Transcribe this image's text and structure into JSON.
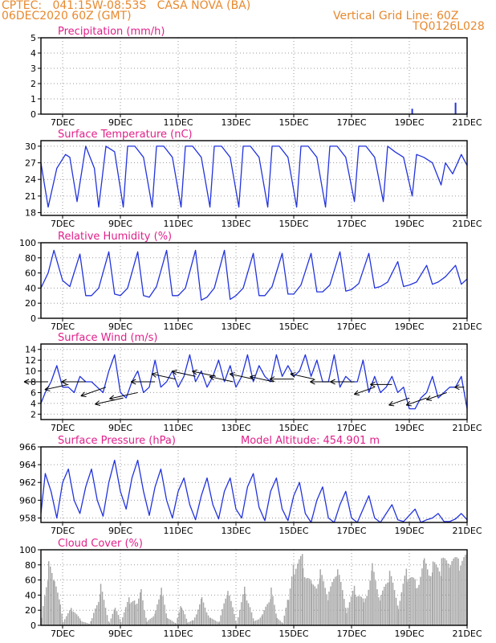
{
  "header": {
    "line1": "CPTEC:   041:15W-08:53S   CASA NOVA (BA)",
    "line2": "06DEC2020 60Z (GMT)",
    "grid_note": "Vertical Grid Line: 60Z",
    "code": "TQ0126L028"
  },
  "colors": {
    "header": "#e8892e",
    "title": "#e0208a",
    "series": "#2233dd",
    "cloud": "#a8a8a8",
    "grid": "#9a9a9a",
    "wind_arrow": "#000000"
  },
  "x_axis": {
    "start_day": 6.25,
    "end_day": 21,
    "tick_labels": [
      "7DEC",
      "9DEC",
      "11DEC",
      "13DEC",
      "15DEC",
      "17DEC",
      "19DEC",
      "21DEC"
    ],
    "tick_days": [
      7,
      9,
      11,
      13,
      15,
      17,
      19,
      21
    ]
  },
  "chart_data": [
    {
      "type": "bar",
      "title": "Precipitation (mm/h)",
      "ylim": [
        0,
        5
      ],
      "yticks": [
        0,
        1,
        2,
        3,
        4,
        5
      ],
      "grid": true,
      "bars": [
        {
          "day": 19.1,
          "value": 0.35
        },
        {
          "day": 20.6,
          "value": 0.75
        },
        {
          "day": 21.0,
          "value": 0.15
        }
      ]
    },
    {
      "type": "line",
      "title": "Surface Temperature (nC)",
      "ylim": [
        17.5,
        31
      ],
      "yticks": [
        18,
        21,
        24,
        27,
        30
      ],
      "grid": true,
      "x": [
        6.25,
        6.5,
        6.8,
        7.1,
        7.25,
        7.5,
        7.8,
        8.1,
        8.25,
        8.5,
        8.8,
        9.1,
        9.25,
        9.5,
        9.8,
        10.1,
        10.25,
        10.5,
        10.8,
        11.1,
        11.25,
        11.5,
        11.8,
        12.1,
        12.25,
        12.5,
        12.8,
        13.1,
        13.25,
        13.5,
        13.8,
        14.1,
        14.25,
        14.5,
        14.8,
        15.1,
        15.25,
        15.5,
        15.8,
        16.1,
        16.25,
        16.5,
        16.8,
        17.1,
        17.25,
        17.5,
        17.8,
        18.1,
        18.25,
        18.5,
        18.8,
        19.1,
        19.25,
        19.5,
        19.8,
        20.1,
        20.25,
        20.5,
        20.8,
        21.0
      ],
      "values": [
        27,
        19,
        26,
        28.5,
        28,
        20,
        30,
        26,
        19,
        30,
        29,
        19,
        30,
        30,
        28,
        19,
        30,
        30,
        28,
        19,
        30,
        30,
        28,
        19,
        30,
        30,
        28,
        19,
        30,
        30,
        28,
        19,
        30,
        30,
        28,
        19,
        30,
        30,
        28,
        19,
        30,
        30,
        28,
        20,
        30,
        30,
        28,
        20,
        30,
        29,
        28,
        21,
        28.5,
        28,
        27,
        23,
        27,
        25,
        28.5,
        26.5
      ]
    },
    {
      "type": "line",
      "title": "Relative Humidity (%)",
      "ylim": [
        0,
        100
      ],
      "yticks": [
        0,
        20,
        40,
        60,
        80,
        100
      ],
      "grid": true,
      "x": [
        6.25,
        6.5,
        6.7,
        7.0,
        7.25,
        7.6,
        7.8,
        8.0,
        8.25,
        8.6,
        8.8,
        9.0,
        9.25,
        9.6,
        9.8,
        10.0,
        10.25,
        10.6,
        10.8,
        11.0,
        11.25,
        11.6,
        11.8,
        12.0,
        12.25,
        12.6,
        12.8,
        13.0,
        13.25,
        13.6,
        13.8,
        14.0,
        14.25,
        14.6,
        14.8,
        15.0,
        15.25,
        15.6,
        15.8,
        16.0,
        16.25,
        16.6,
        16.8,
        17.0,
        17.25,
        17.6,
        17.8,
        18.0,
        18.25,
        18.6,
        18.8,
        19.0,
        19.25,
        19.6,
        19.8,
        20.0,
        20.25,
        20.6,
        20.8,
        21.0
      ],
      "values": [
        40,
        60,
        90,
        50,
        42,
        85,
        30,
        30,
        40,
        88,
        32,
        30,
        40,
        88,
        30,
        28,
        42,
        90,
        30,
        30,
        40,
        90,
        24,
        28,
        40,
        90,
        25,
        30,
        40,
        86,
        30,
        30,
        42,
        86,
        32,
        32,
        44,
        86,
        35,
        35,
        44,
        88,
        36,
        38,
        46,
        86,
        40,
        42,
        48,
        75,
        42,
        44,
        48,
        70,
        45,
        48,
        55,
        70,
        45,
        52
      ]
    },
    {
      "type": "line",
      "title": "Surface Wind (m/s)",
      "ylim": [
        1,
        15
      ],
      "yticks": [
        2,
        4,
        6,
        8,
        10,
        12,
        14
      ],
      "grid": true,
      "x": [
        6.25,
        6.4,
        6.6,
        6.8,
        7.0,
        7.2,
        7.4,
        7.6,
        7.8,
        8.0,
        8.2,
        8.4,
        8.6,
        8.8,
        9.0,
        9.2,
        9.4,
        9.6,
        9.8,
        10.0,
        10.2,
        10.4,
        10.6,
        10.8,
        11.0,
        11.2,
        11.4,
        11.6,
        11.8,
        12.0,
        12.2,
        12.4,
        12.6,
        12.8,
        13.0,
        13.2,
        13.4,
        13.6,
        13.8,
        14.0,
        14.2,
        14.4,
        14.6,
        14.8,
        15.0,
        15.2,
        15.4,
        15.6,
        15.8,
        16.0,
        16.2,
        16.4,
        16.6,
        16.8,
        17.0,
        17.2,
        17.4,
        17.6,
        17.8,
        18.0,
        18.2,
        18.4,
        18.6,
        18.8,
        19.0,
        19.2,
        19.4,
        19.6,
        19.8,
        20.0,
        20.2,
        20.4,
        20.6,
        20.8,
        21.0
      ],
      "values": [
        4,
        6,
        8,
        11,
        7,
        7,
        6,
        9,
        8,
        8,
        7,
        6,
        10,
        13,
        6,
        5,
        8,
        10,
        6,
        7,
        12,
        7,
        8,
        10,
        7,
        9,
        13,
        8,
        10,
        7,
        9,
        12,
        8,
        11,
        7,
        9,
        13,
        8,
        11,
        9,
        8,
        13,
        9,
        11,
        9,
        10,
        13,
        9,
        12,
        8,
        8,
        13,
        7,
        9,
        8,
        8,
        12,
        6,
        9,
        6,
        7,
        9,
        6,
        7,
        3,
        3,
        5,
        6,
        9,
        5,
        6,
        7,
        7,
        9,
        3
      ]
    },
    {
      "type": "line",
      "title": "Surface Pressure (hPa)",
      "subtitle": "Model Altitude: 454.901 m",
      "ylim": [
        957.5,
        966
      ],
      "yticks": [
        958,
        960,
        962,
        964,
        966
      ],
      "grid": true,
      "x": [
        6.25,
        6.4,
        6.6,
        6.8,
        7.0,
        7.2,
        7.4,
        7.6,
        7.8,
        8.0,
        8.2,
        8.4,
        8.6,
        8.8,
        9.0,
        9.2,
        9.4,
        9.6,
        9.8,
        10.0,
        10.2,
        10.4,
        10.6,
        10.8,
        11.0,
        11.2,
        11.4,
        11.6,
        11.8,
        12.0,
        12.2,
        12.4,
        12.6,
        12.8,
        13.0,
        13.2,
        13.4,
        13.6,
        13.8,
        14.0,
        14.2,
        14.4,
        14.6,
        14.8,
        15.0,
        15.2,
        15.4,
        15.6,
        15.8,
        16.0,
        16.2,
        16.4,
        16.6,
        16.8,
        17.0,
        17.2,
        17.4,
        17.6,
        17.8,
        18.0,
        18.2,
        18.4,
        18.6,
        18.8,
        19.0,
        19.2,
        19.4,
        19.6,
        19.8,
        20.0,
        20.2,
        20.4,
        20.6,
        20.8,
        21.0
      ],
      "values": [
        958.5,
        963,
        961,
        958,
        962,
        963.5,
        960,
        958.5,
        961.5,
        963.5,
        960,
        958.2,
        962,
        964.5,
        961,
        959,
        962.5,
        964.5,
        961,
        958.3,
        961.5,
        963.5,
        960,
        958,
        961,
        962.5,
        959.5,
        957.8,
        960.5,
        962.5,
        959.5,
        957.9,
        961,
        962.5,
        959,
        958,
        961.5,
        963,
        959.2,
        957.7,
        961,
        962.5,
        959,
        957.7,
        960.5,
        962,
        958.5,
        957.5,
        960,
        961.5,
        958,
        957.5,
        959.5,
        961,
        958,
        957.5,
        959,
        960.5,
        958,
        957.5,
        958.5,
        959.5,
        957.8,
        957.6,
        958.3,
        959,
        957.5,
        957.8,
        958,
        958.5,
        957.6,
        957.6,
        957.9,
        958.5,
        957.8
      ]
    },
    {
      "type": "area",
      "title": "Cloud Cover (%)",
      "ylim": [
        0,
        100
      ],
      "yticks": [
        0,
        20,
        40,
        60,
        80,
        100
      ],
      "grid": true,
      "x": [
        6.25,
        6.5,
        6.7,
        6.9,
        7.0,
        7.3,
        7.6,
        7.9,
        8.0,
        8.3,
        8.6,
        8.8,
        9.0,
        9.3,
        9.5,
        9.7,
        9.9,
        10.2,
        10.4,
        10.6,
        10.9,
        11.1,
        11.3,
        11.5,
        11.8,
        12.1,
        12.4,
        12.7,
        13.0,
        13.3,
        13.6,
        13.9,
        14.2,
        14.4,
        14.6,
        14.8,
        15.0,
        15.3,
        15.6,
        15.9,
        16.2,
        16.5,
        16.8,
        17.1,
        17.4,
        17.7,
        18.0,
        18.3,
        18.6,
        18.9,
        19.2,
        19.5,
        19.8,
        20.1,
        20.4,
        20.7,
        21.0
      ],
      "values": [
        10,
        85,
        60,
        30,
        5,
        25,
        8,
        2,
        10,
        55,
        3,
        25,
        5,
        40,
        35,
        55,
        5,
        20,
        50,
        10,
        3,
        30,
        5,
        8,
        40,
        10,
        5,
        50,
        3,
        55,
        6,
        15,
        50,
        10,
        3,
        40,
        90,
        95,
        60,
        75,
        45,
        80,
        20,
        55,
        35,
        85,
        40,
        75,
        25,
        80,
        60,
        95,
        85,
        90,
        88,
        92,
        95
      ]
    }
  ],
  "wind_arrows": [
    {
      "day": 6.5,
      "dir": "w",
      "len": 1.0,
      "mps": 8
    },
    {
      "day": 7.2,
      "dir": "wsw",
      "len": 1.0,
      "mps": 7.5
    },
    {
      "day": 7.8,
      "dir": "w",
      "len": 1.0,
      "mps": 8
    },
    {
      "day": 8.5,
      "dir": "ws",
      "len": 1.1,
      "mps": 7
    },
    {
      "day": 9.1,
      "dir": "wsw",
      "len": 1.2,
      "mps": 5
    },
    {
      "day": 9.6,
      "dir": "wsw",
      "len": 1.2,
      "mps": 6
    },
    {
      "day": 10.2,
      "dir": "w",
      "len": 1.0,
      "mps": 8
    },
    {
      "day": 10.9,
      "dir": "wn",
      "len": 1.0,
      "mps": 8.5
    },
    {
      "day": 11.6,
      "dir": "wn",
      "len": 1.0,
      "mps": 9
    },
    {
      "day": 12.3,
      "dir": "wn",
      "len": 1.0,
      "mps": 9
    },
    {
      "day": 12.9,
      "dir": "wn",
      "len": 1.0,
      "mps": 8
    },
    {
      "day": 13.6,
      "dir": "wn",
      "len": 1.0,
      "mps": 8.5
    },
    {
      "day": 14.3,
      "dir": "wn",
      "len": 1.0,
      "mps": 8
    },
    {
      "day": 15.0,
      "dir": "w",
      "len": 1.0,
      "mps": 8.5
    },
    {
      "day": 15.7,
      "dir": "wn",
      "len": 1.0,
      "mps": 8.5
    },
    {
      "day": 16.4,
      "dir": "w",
      "len": 1.0,
      "mps": 8
    },
    {
      "day": 17.1,
      "dir": "w",
      "len": 1.0,
      "mps": 8
    },
    {
      "day": 17.8,
      "dir": "ws",
      "len": 0.9,
      "mps": 7
    },
    {
      "day": 18.4,
      "dir": "w",
      "len": 0.9,
      "mps": 7.5
    },
    {
      "day": 19.0,
      "dir": "ws",
      "len": 0.9,
      "mps": 5
    },
    {
      "day": 19.6,
      "dir": "ws",
      "len": 0.9,
      "mps": 5
    },
    {
      "day": 20.3,
      "dir": "ws",
      "len": 0.9,
      "mps": 6
    },
    {
      "day": 20.9,
      "dir": "w",
      "len": 0.4,
      "mps": 7
    }
  ]
}
